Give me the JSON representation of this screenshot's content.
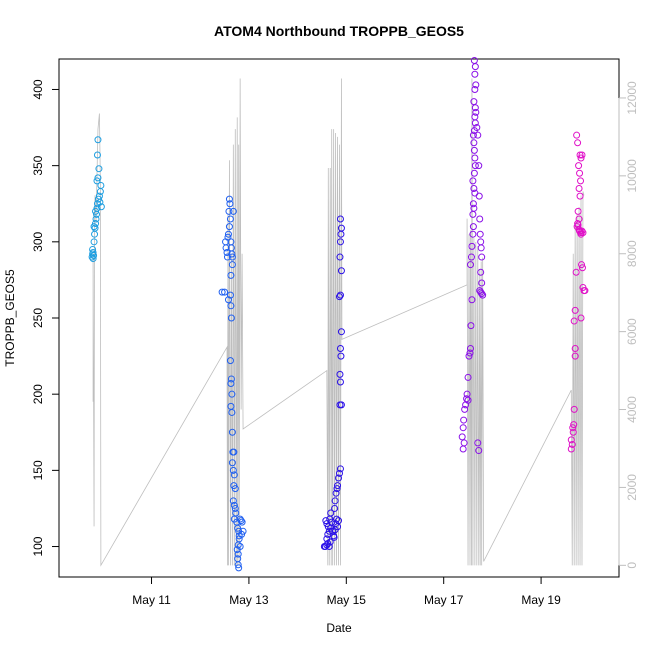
{
  "chart_data": {
    "type": "scatter",
    "title": "ATOM4 Northbound TROPPB_GEOS5",
    "xlabel": "Date",
    "ylabel": "TROPPB_GEOS5",
    "x_unit": "days in May",
    "xlim": [
      9.1,
      20.6
    ],
    "ylim": [
      80,
      420
    ],
    "y2lim": [
      -300,
      13000
    ],
    "y_ticks": [
      100,
      150,
      200,
      250,
      300,
      350,
      400
    ],
    "y2_ticks": [
      0,
      2000,
      4000,
      6000,
      8000,
      10000,
      12000
    ],
    "x_ticks": [
      {
        "value": 11,
        "label": "May 11"
      },
      {
        "value": 13,
        "label": "May 13"
      },
      {
        "value": 15,
        "label": "May 15"
      },
      {
        "value": 17,
        "label": "May 17"
      },
      {
        "value": 19,
        "label": "May 19"
      }
    ],
    "grid": false,
    "legend": "none",
    "colors": {
      "altitude_trace": "#bebebe",
      "axis": "#000000",
      "right_axis": "#bebebe",
      "series_gradient": [
        "#1e9ee0",
        "#2060f0",
        "#2a10e8",
        "#8a10e8",
        "#e010c8"
      ]
    },
    "series": [
      {
        "flight": 1,
        "color": "#1e9ee0",
        "points": [
          [
            9.78,
            290
          ],
          [
            9.79,
            292
          ],
          [
            9.8,
            293
          ],
          [
            9.81,
            291
          ],
          [
            9.8,
            289
          ],
          [
            9.79,
            295
          ],
          [
            9.82,
            300
          ],
          [
            9.83,
            305
          ],
          [
            9.84,
            309
          ],
          [
            9.85,
            312
          ],
          [
            9.82,
            310
          ],
          [
            9.86,
            315
          ],
          [
            9.87,
            318
          ],
          [
            9.85,
            320
          ],
          [
            9.88,
            322
          ],
          [
            9.89,
            325
          ],
          [
            9.91,
            328
          ],
          [
            9.93,
            330
          ],
          [
            9.95,
            333
          ],
          [
            9.96,
            337
          ],
          [
            9.88,
            340
          ],
          [
            9.9,
            342
          ],
          [
            9.92,
            348
          ],
          [
            9.89,
            357
          ],
          [
            9.9,
            367
          ],
          [
            9.97,
            323
          ],
          [
            9.94,
            326
          ]
        ]
      },
      {
        "flight": 2,
        "color": "#2060f0",
        "points": [
          [
            12.45,
            267
          ],
          [
            12.5,
            267
          ],
          [
            12.52,
            300
          ],
          [
            12.53,
            296
          ],
          [
            12.55,
            293
          ],
          [
            12.56,
            290
          ],
          [
            12.57,
            303
          ],
          [
            12.58,
            305
          ],
          [
            12.6,
            310
          ],
          [
            12.62,
            315
          ],
          [
            12.59,
            320
          ],
          [
            12.61,
            325
          ],
          [
            12.6,
            328
          ],
          [
            12.63,
            300
          ],
          [
            12.64,
            296
          ],
          [
            12.65,
            292
          ],
          [
            12.66,
            285
          ],
          [
            12.63,
            278
          ],
          [
            12.62,
            265
          ],
          [
            12.63,
            258
          ],
          [
            12.64,
            250
          ],
          [
            12.62,
            222
          ],
          [
            12.64,
            210
          ],
          [
            12.63,
            207
          ],
          [
            12.65,
            200
          ],
          [
            12.63,
            192
          ],
          [
            12.65,
            188
          ],
          [
            12.66,
            175
          ],
          [
            12.67,
            162
          ],
          [
            12.69,
            162
          ],
          [
            12.66,
            155
          ],
          [
            12.68,
            150
          ],
          [
            12.7,
            147
          ],
          [
            12.69,
            140
          ],
          [
            12.72,
            138
          ],
          [
            12.68,
            130
          ],
          [
            12.7,
            127
          ],
          [
            12.72,
            125
          ],
          [
            12.73,
            122
          ],
          [
            12.7,
            118
          ],
          [
            12.75,
            116
          ],
          [
            12.77,
            112
          ],
          [
            12.79,
            110
          ],
          [
            12.82,
            118
          ],
          [
            12.84,
            117
          ],
          [
            12.86,
            116
          ],
          [
            12.88,
            110
          ],
          [
            12.85,
            108
          ],
          [
            12.8,
            107
          ],
          [
            12.8,
            105
          ],
          [
            12.78,
            101
          ],
          [
            12.82,
            100
          ],
          [
            12.76,
            98
          ],
          [
            12.78,
            95
          ],
          [
            12.77,
            92
          ],
          [
            12.78,
            88
          ],
          [
            12.79,
            86
          ],
          [
            12.68,
            320
          ],
          [
            12.66,
            290
          ],
          [
            12.58,
            262
          ]
        ]
      },
      {
        "flight": 3,
        "color": "#2a10e8",
        "points": [
          [
            14.55,
            100
          ],
          [
            14.57,
            100
          ],
          [
            14.6,
            101
          ],
          [
            14.62,
            102
          ],
          [
            14.65,
            100
          ],
          [
            14.67,
            103
          ],
          [
            14.6,
            105
          ],
          [
            14.62,
            108
          ],
          [
            14.65,
            110
          ],
          [
            14.68,
            112
          ],
          [
            14.58,
            117
          ],
          [
            14.6,
            115
          ],
          [
            14.63,
            113
          ],
          [
            14.66,
            118
          ],
          [
            14.68,
            122
          ],
          [
            14.7,
            116
          ],
          [
            14.72,
            110
          ],
          [
            14.74,
            107
          ],
          [
            14.75,
            106
          ],
          [
            14.77,
            111
          ],
          [
            14.78,
            115
          ],
          [
            14.8,
            118
          ],
          [
            14.82,
            113
          ],
          [
            14.84,
            117
          ],
          [
            14.76,
            125
          ],
          [
            14.77,
            130
          ],
          [
            14.79,
            135
          ],
          [
            14.81,
            138
          ],
          [
            14.82,
            140
          ],
          [
            14.84,
            145
          ],
          [
            14.86,
            148
          ],
          [
            14.88,
            151
          ],
          [
            14.87,
            193
          ],
          [
            14.9,
            193
          ],
          [
            14.88,
            208
          ],
          [
            14.87,
            213
          ],
          [
            14.89,
            225
          ],
          [
            14.88,
            230
          ],
          [
            14.9,
            241
          ],
          [
            14.86,
            264
          ],
          [
            14.88,
            265
          ],
          [
            14.9,
            281
          ],
          [
            14.87,
            290
          ],
          [
            14.88,
            300
          ],
          [
            14.89,
            305
          ],
          [
            14.9,
            309
          ],
          [
            14.88,
            315
          ]
        ]
      },
      {
        "flight": 4,
        "color": "#8a10e8",
        "points": [
          [
            17.4,
            164
          ],
          [
            17.42,
            168
          ],
          [
            17.38,
            172
          ],
          [
            17.4,
            178
          ],
          [
            17.41,
            183
          ],
          [
            17.43,
            190
          ],
          [
            17.45,
            193
          ],
          [
            17.47,
            197
          ],
          [
            17.5,
            211
          ],
          [
            17.52,
            225
          ],
          [
            17.54,
            227
          ],
          [
            17.55,
            230
          ],
          [
            17.56,
            245
          ],
          [
            17.58,
            262
          ],
          [
            17.55,
            285
          ],
          [
            17.57,
            290
          ],
          [
            17.58,
            297
          ],
          [
            17.6,
            305
          ],
          [
            17.61,
            310
          ],
          [
            17.6,
            318
          ],
          [
            17.62,
            322
          ],
          [
            17.61,
            325
          ],
          [
            17.64,
            332
          ],
          [
            17.62,
            335
          ],
          [
            17.6,
            340
          ],
          [
            17.63,
            345
          ],
          [
            17.65,
            350
          ],
          [
            17.64,
            355
          ],
          [
            17.63,
            360
          ],
          [
            17.62,
            365
          ],
          [
            17.61,
            370
          ],
          [
            17.63,
            373
          ],
          [
            17.65,
            378
          ],
          [
            17.64,
            382
          ],
          [
            17.66,
            385
          ],
          [
            17.65,
            388
          ],
          [
            17.62,
            392
          ],
          [
            17.64,
            400
          ],
          [
            17.66,
            403
          ],
          [
            17.64,
            410
          ],
          [
            17.65,
            415
          ],
          [
            17.63,
            419
          ],
          [
            17.68,
            375
          ],
          [
            17.7,
            370
          ],
          [
            17.72,
            350
          ],
          [
            17.73,
            330
          ],
          [
            17.74,
            315
          ],
          [
            17.75,
            305
          ],
          [
            17.76,
            300
          ],
          [
            17.77,
            296
          ],
          [
            17.78,
            290
          ],
          [
            17.76,
            280
          ],
          [
            17.78,
            273
          ],
          [
            17.74,
            268
          ],
          [
            17.76,
            267
          ],
          [
            17.78,
            266
          ],
          [
            17.8,
            265
          ],
          [
            17.72,
            163
          ],
          [
            17.7,
            168
          ],
          [
            17.5,
            196
          ],
          [
            17.48,
            200
          ]
        ]
      },
      {
        "flight": 5,
        "color": "#e010c8",
        "points": [
          [
            19.62,
            164
          ],
          [
            19.64,
            167
          ],
          [
            19.62,
            170
          ],
          [
            19.66,
            175
          ],
          [
            19.65,
            178
          ],
          [
            19.67,
            180
          ],
          [
            19.68,
            190
          ],
          [
            19.7,
            225
          ],
          [
            19.7,
            230
          ],
          [
            19.68,
            248
          ],
          [
            19.7,
            255
          ],
          [
            19.72,
            280
          ],
          [
            19.74,
            310
          ],
          [
            19.75,
            312
          ],
          [
            19.76,
            311
          ],
          [
            19.78,
            308
          ],
          [
            19.79,
            307
          ],
          [
            19.8,
            307
          ],
          [
            19.82,
            306
          ],
          [
            19.84,
            307
          ],
          [
            19.86,
            306
          ],
          [
            19.82,
            305
          ],
          [
            19.78,
            315
          ],
          [
            19.76,
            320
          ],
          [
            19.8,
            330
          ],
          [
            19.78,
            335
          ],
          [
            19.81,
            340
          ],
          [
            19.79,
            345
          ],
          [
            19.77,
            350
          ],
          [
            19.82,
            355
          ],
          [
            19.8,
            357
          ],
          [
            19.84,
            357
          ],
          [
            19.75,
            365
          ],
          [
            19.73,
            370
          ],
          [
            19.83,
            285
          ],
          [
            19.85,
            283
          ],
          [
            19.86,
            270
          ],
          [
            19.88,
            268
          ],
          [
            19.9,
            268
          ],
          [
            19.82,
            250
          ]
        ]
      }
    ],
    "altitude_trace": [
      [
        9.8,
        4200
      ],
      [
        9.8,
        8000
      ],
      [
        9.82,
        1000
      ],
      [
        9.83,
        9000
      ],
      [
        9.84,
        9500
      ],
      [
        9.86,
        8800
      ],
      [
        9.88,
        10000
      ],
      [
        9.9,
        11200
      ],
      [
        9.93,
        11600
      ],
      [
        9.95,
        9800
      ],
      [
        9.96,
        0
      ],
      [
        12.55,
        5600
      ],
      [
        12.56,
        0
      ],
      [
        12.57,
        9000
      ],
      [
        12.58,
        0
      ],
      [
        12.6,
        10400
      ],
      [
        12.62,
        0
      ],
      [
        12.64,
        8000
      ],
      [
        12.66,
        0
      ],
      [
        12.68,
        10800
      ],
      [
        12.7,
        0
      ],
      [
        12.72,
        11200
      ],
      [
        12.74,
        0
      ],
      [
        12.76,
        11500
      ],
      [
        12.77,
        0
      ],
      [
        12.79,
        10800
      ],
      [
        12.8,
        0
      ],
      [
        12.82,
        12500
      ],
      [
        12.84,
        4000
      ],
      [
        12.86,
        8000
      ],
      [
        12.88,
        3500
      ],
      [
        14.6,
        5000
      ],
      [
        14.62,
        0
      ],
      [
        14.63,
        10200
      ],
      [
        14.65,
        0
      ],
      [
        14.67,
        10200
      ],
      [
        14.69,
        0
      ],
      [
        14.7,
        11200
      ],
      [
        14.72,
        0
      ],
      [
        14.74,
        11200
      ],
      [
        14.76,
        0
      ],
      [
        14.78,
        11100
      ],
      [
        14.8,
        0
      ],
      [
        14.82,
        11000
      ],
      [
        14.84,
        0
      ],
      [
        14.86,
        10800
      ],
      [
        14.88,
        0
      ],
      [
        14.9,
        12500
      ],
      [
        14.91,
        5800
      ],
      [
        17.48,
        7200
      ],
      [
        17.48,
        8900
      ],
      [
        17.5,
        0
      ],
      [
        17.52,
        8500
      ],
      [
        17.54,
        0
      ],
      [
        17.55,
        8600
      ],
      [
        17.57,
        0
      ],
      [
        17.58,
        12500
      ],
      [
        17.6,
        0
      ],
      [
        17.62,
        8400
      ],
      [
        17.64,
        0
      ],
      [
        17.66,
        8300
      ],
      [
        17.68,
        0
      ],
      [
        17.7,
        8200
      ],
      [
        17.72,
        0
      ],
      [
        17.74,
        7600
      ],
      [
        17.75,
        0
      ],
      [
        17.77,
        7800
      ],
      [
        17.78,
        0
      ],
      [
        17.8,
        7900
      ],
      [
        17.82,
        100
      ],
      [
        19.62,
        4500
      ],
      [
        19.64,
        0
      ],
      [
        19.66,
        8000
      ],
      [
        19.68,
        0
      ],
      [
        19.7,
        8800
      ],
      [
        19.72,
        0
      ],
      [
        19.74,
        9000
      ],
      [
        19.76,
        0
      ],
      [
        19.78,
        9200
      ],
      [
        19.8,
        0
      ],
      [
        19.82,
        9500
      ],
      [
        19.84,
        0
      ],
      [
        19.86,
        9600
      ],
      [
        19.88,
        9500
      ]
    ]
  }
}
